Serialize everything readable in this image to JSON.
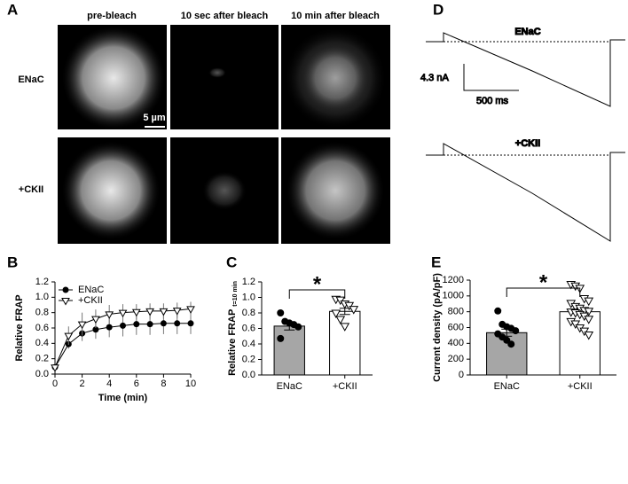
{
  "panel_labels": [
    "A",
    "B",
    "C",
    "D",
    "E"
  ],
  "micrographs": {
    "columns": [
      "pre-bleach",
      "10 sec after bleach",
      "10 min after bleach"
    ],
    "rows": [
      "ENaC",
      "+CKII"
    ],
    "scale_bar": "5 µm"
  },
  "traces": {
    "rows": [
      "ENaC",
      "+CKII"
    ],
    "scale_current": "4.3 nA",
    "scale_time": "500 ms"
  },
  "chart_data": [
    {
      "type": "line",
      "xlabel": "Time (min)",
      "ylabel": "Relative FRAP",
      "x": [
        0,
        1,
        2,
        3,
        4,
        5,
        6,
        7,
        8,
        9,
        10
      ],
      "series": [
        {
          "name": "ENaC",
          "color": "#000000",
          "marker": "circle",
          "values": [
            0.09,
            0.39,
            0.53,
            0.58,
            0.61,
            0.63,
            0.65,
            0.65,
            0.66,
            0.66,
            0.66
          ],
          "errors": [
            0.03,
            0.06,
            0.1,
            0.12,
            0.13,
            0.14,
            0.14,
            0.14,
            0.14,
            0.14,
            0.14
          ]
        },
        {
          "name": "+CKII",
          "color": "#000000",
          "marker": "triangle-down",
          "values": [
            0.09,
            0.5,
            0.65,
            0.72,
            0.78,
            0.8,
            0.81,
            0.82,
            0.82,
            0.83,
            0.85
          ],
          "errors": [
            0.03,
            0.12,
            0.15,
            0.12,
            0.12,
            0.11,
            0.1,
            0.1,
            0.1,
            0.1,
            0.09
          ]
        }
      ],
      "xlim": [
        0,
        10
      ],
      "xticks": [
        0,
        2,
        4,
        6,
        8,
        10
      ],
      "ylim": [
        0,
        1.2
      ],
      "yticks": [
        {
          "value": 0,
          "label": "0.0"
        },
        0.2,
        0.4,
        0.6,
        0.8,
        {
          "value": 1,
          "label": "1.0"
        },
        1.2
      ],
      "legend": "upper left"
    },
    {
      "type": "bar",
      "ylabel": "Relative FRAP",
      "ylabel_subscript": "t=10 min",
      "categories": [
        "ENaC",
        "+CKII"
      ],
      "values": [
        0.63,
        0.82
      ],
      "errors": [
        0.05,
        0.04
      ],
      "bar_colors": [
        "#a6a6a6",
        "#ffffff"
      ],
      "point_markers": [
        "circle",
        "triangle-down"
      ],
      "points": [
        [
          0.8,
          0.69,
          0.67,
          0.65,
          0.62,
          0.47
        ],
        [
          0.98,
          0.97,
          0.92,
          0.9,
          0.85,
          0.8,
          0.72,
          0.63
        ]
      ],
      "ylim": [
        0,
        1.2
      ],
      "yticks": [
        {
          "value": 0,
          "label": "0.0"
        },
        0.2,
        0.4,
        0.6,
        0.8,
        {
          "value": 1,
          "label": "1.0"
        },
        1.2
      ],
      "significance": "*"
    },
    {
      "type": "bar",
      "ylabel": "Current density (pA/pF)",
      "categories": [
        "ENaC",
        "+CKII"
      ],
      "values": [
        535,
        800
      ],
      "errors": [
        45,
        35
      ],
      "bar_colors": [
        "#a6a6a6",
        "#ffffff"
      ],
      "point_markers": [
        "circle",
        "triangle-down"
      ],
      "points": [
        [
          810,
          640,
          610,
          590,
          560,
          520,
          480,
          440,
          390
        ],
        [
          1150,
          1130,
          1100,
          970,
          940,
          910,
          870,
          850,
          820,
          810,
          800,
          790,
          770,
          750,
          710,
          680,
          650,
          600,
          560,
          510
        ]
      ],
      "ylim": [
        0,
        1200
      ],
      "yticks": [
        0,
        200,
        400,
        600,
        800,
        1000,
        1200
      ],
      "significance": "*"
    }
  ]
}
